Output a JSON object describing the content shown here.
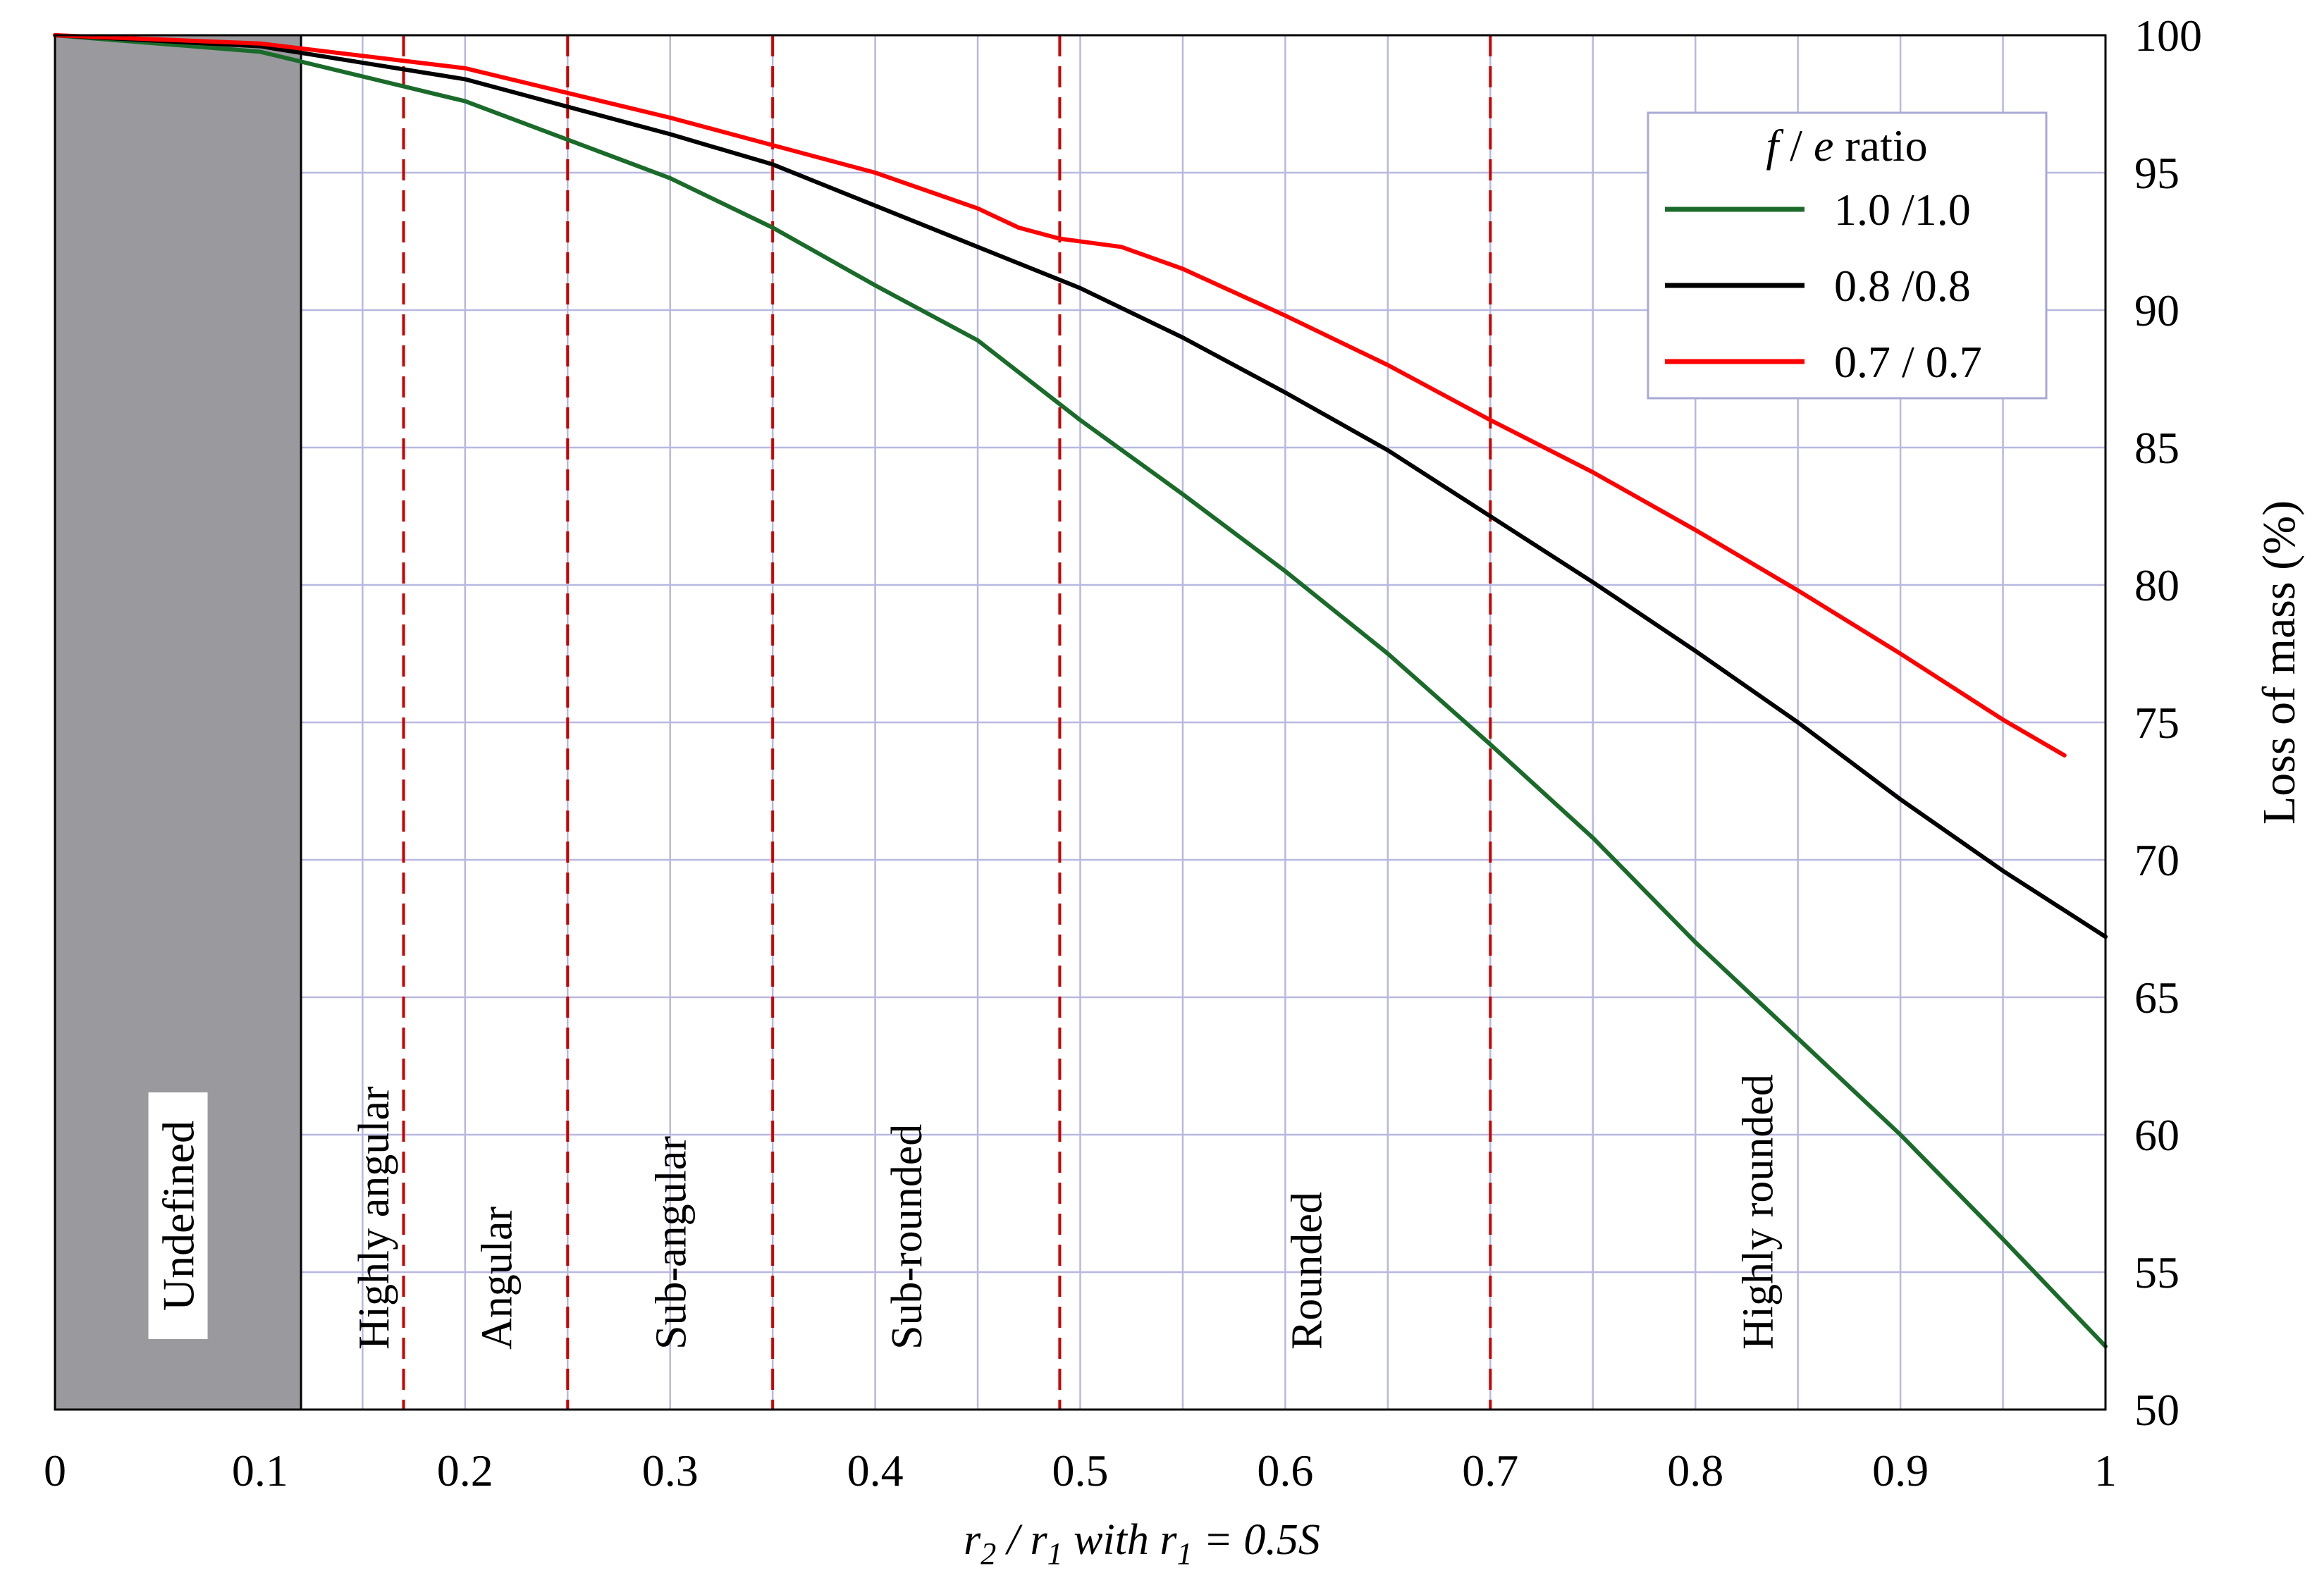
{
  "chart_data": {
    "type": "line",
    "xlabel_parts": {
      "r2": "r",
      "sub2": "2",
      "mid": " / ",
      "r1": "r",
      "sub1": "1",
      "tail": " with ",
      "r1b": "r",
      "sub1b": "1",
      "end": " = 0.5S"
    },
    "ylabel": "Loss of mass (%)",
    "xlim": [
      0,
      1
    ],
    "ylim": [
      50,
      100
    ],
    "x_ticks": [
      0,
      0.1,
      0.2,
      0.3,
      0.4,
      0.5,
      0.6,
      0.7,
      0.8,
      0.9,
      1
    ],
    "x_tick_labels": [
      "0",
      "0.1",
      "0.2",
      "0.3",
      "0.4",
      "0.5",
      "0.6",
      "0.7",
      "0.8",
      "0.9",
      "1"
    ],
    "y_ticks": [
      50,
      55,
      60,
      65,
      70,
      75,
      80,
      85,
      90,
      95,
      100
    ],
    "y_tick_labels": [
      "50",
      "55",
      "60",
      "65",
      "70",
      "75",
      "80",
      "85",
      "90",
      "95",
      "100"
    ],
    "x_minor_grid": [
      0.05,
      0.15,
      0.25,
      0.35,
      0.45,
      0.55,
      0.65,
      0.75,
      0.85,
      0.95
    ],
    "undefined_region": {
      "x_end": 0.12,
      "label": "Undefined"
    },
    "class_boundaries": [
      0.17,
      0.25,
      0.35,
      0.49,
      0.7
    ],
    "class_labels": [
      {
        "text": "Highly angular",
        "x": 0.155
      },
      {
        "text": "Angular",
        "x": 0.215
      },
      {
        "text": "Sub-angular",
        "x": 0.3
      },
      {
        "text": "Sub-rounded",
        "x": 0.415
      },
      {
        "text": "Rounded",
        "x": 0.61
      },
      {
        "text": "Highly rounded",
        "x": 0.83
      }
    ],
    "legend": {
      "title_f": "f",
      "title_sep": " / ",
      "title_e": "e",
      "title_tail": " ratio",
      "position": "top-right"
    },
    "series": [
      {
        "name": "1.0 /1.0",
        "color": "#1a6b2a",
        "x": [
          0,
          0.1,
          0.2,
          0.3,
          0.35,
          0.4,
          0.45,
          0.5,
          0.55,
          0.6,
          0.65,
          0.7,
          0.75,
          0.8,
          0.85,
          0.9,
          0.95,
          1.0
        ],
        "y": [
          100,
          99.4,
          97.6,
          94.8,
          93.0,
          90.9,
          88.9,
          86.0,
          83.3,
          80.5,
          77.5,
          74.2,
          70.8,
          67.0,
          63.5,
          60.0,
          56.2,
          52.3
        ]
      },
      {
        "name": "0.8 /0.8",
        "color": "#000000",
        "x": [
          0,
          0.1,
          0.2,
          0.3,
          0.35,
          0.4,
          0.45,
          0.5,
          0.55,
          0.6,
          0.65,
          0.7,
          0.75,
          0.8,
          0.85,
          0.9,
          0.95,
          1.0
        ],
        "y": [
          100,
          99.6,
          98.4,
          96.4,
          95.3,
          93.8,
          92.3,
          90.8,
          89.0,
          87.0,
          84.9,
          82.5,
          80.1,
          77.6,
          75.0,
          72.2,
          69.6,
          67.2
        ]
      },
      {
        "name": "0.7 / 0.7",
        "color": "#ff0000",
        "x": [
          0,
          0.1,
          0.2,
          0.3,
          0.35,
          0.4,
          0.45,
          0.47,
          0.49,
          0.52,
          0.55,
          0.6,
          0.65,
          0.7,
          0.75,
          0.8,
          0.85,
          0.9,
          0.95,
          0.98
        ],
        "y": [
          100,
          99.7,
          98.8,
          97.0,
          96.0,
          95.0,
          93.7,
          93.0,
          92.6,
          92.3,
          91.5,
          89.8,
          88.0,
          86.0,
          84.1,
          82.0,
          79.8,
          77.5,
          75.1,
          73.8
        ]
      }
    ]
  }
}
